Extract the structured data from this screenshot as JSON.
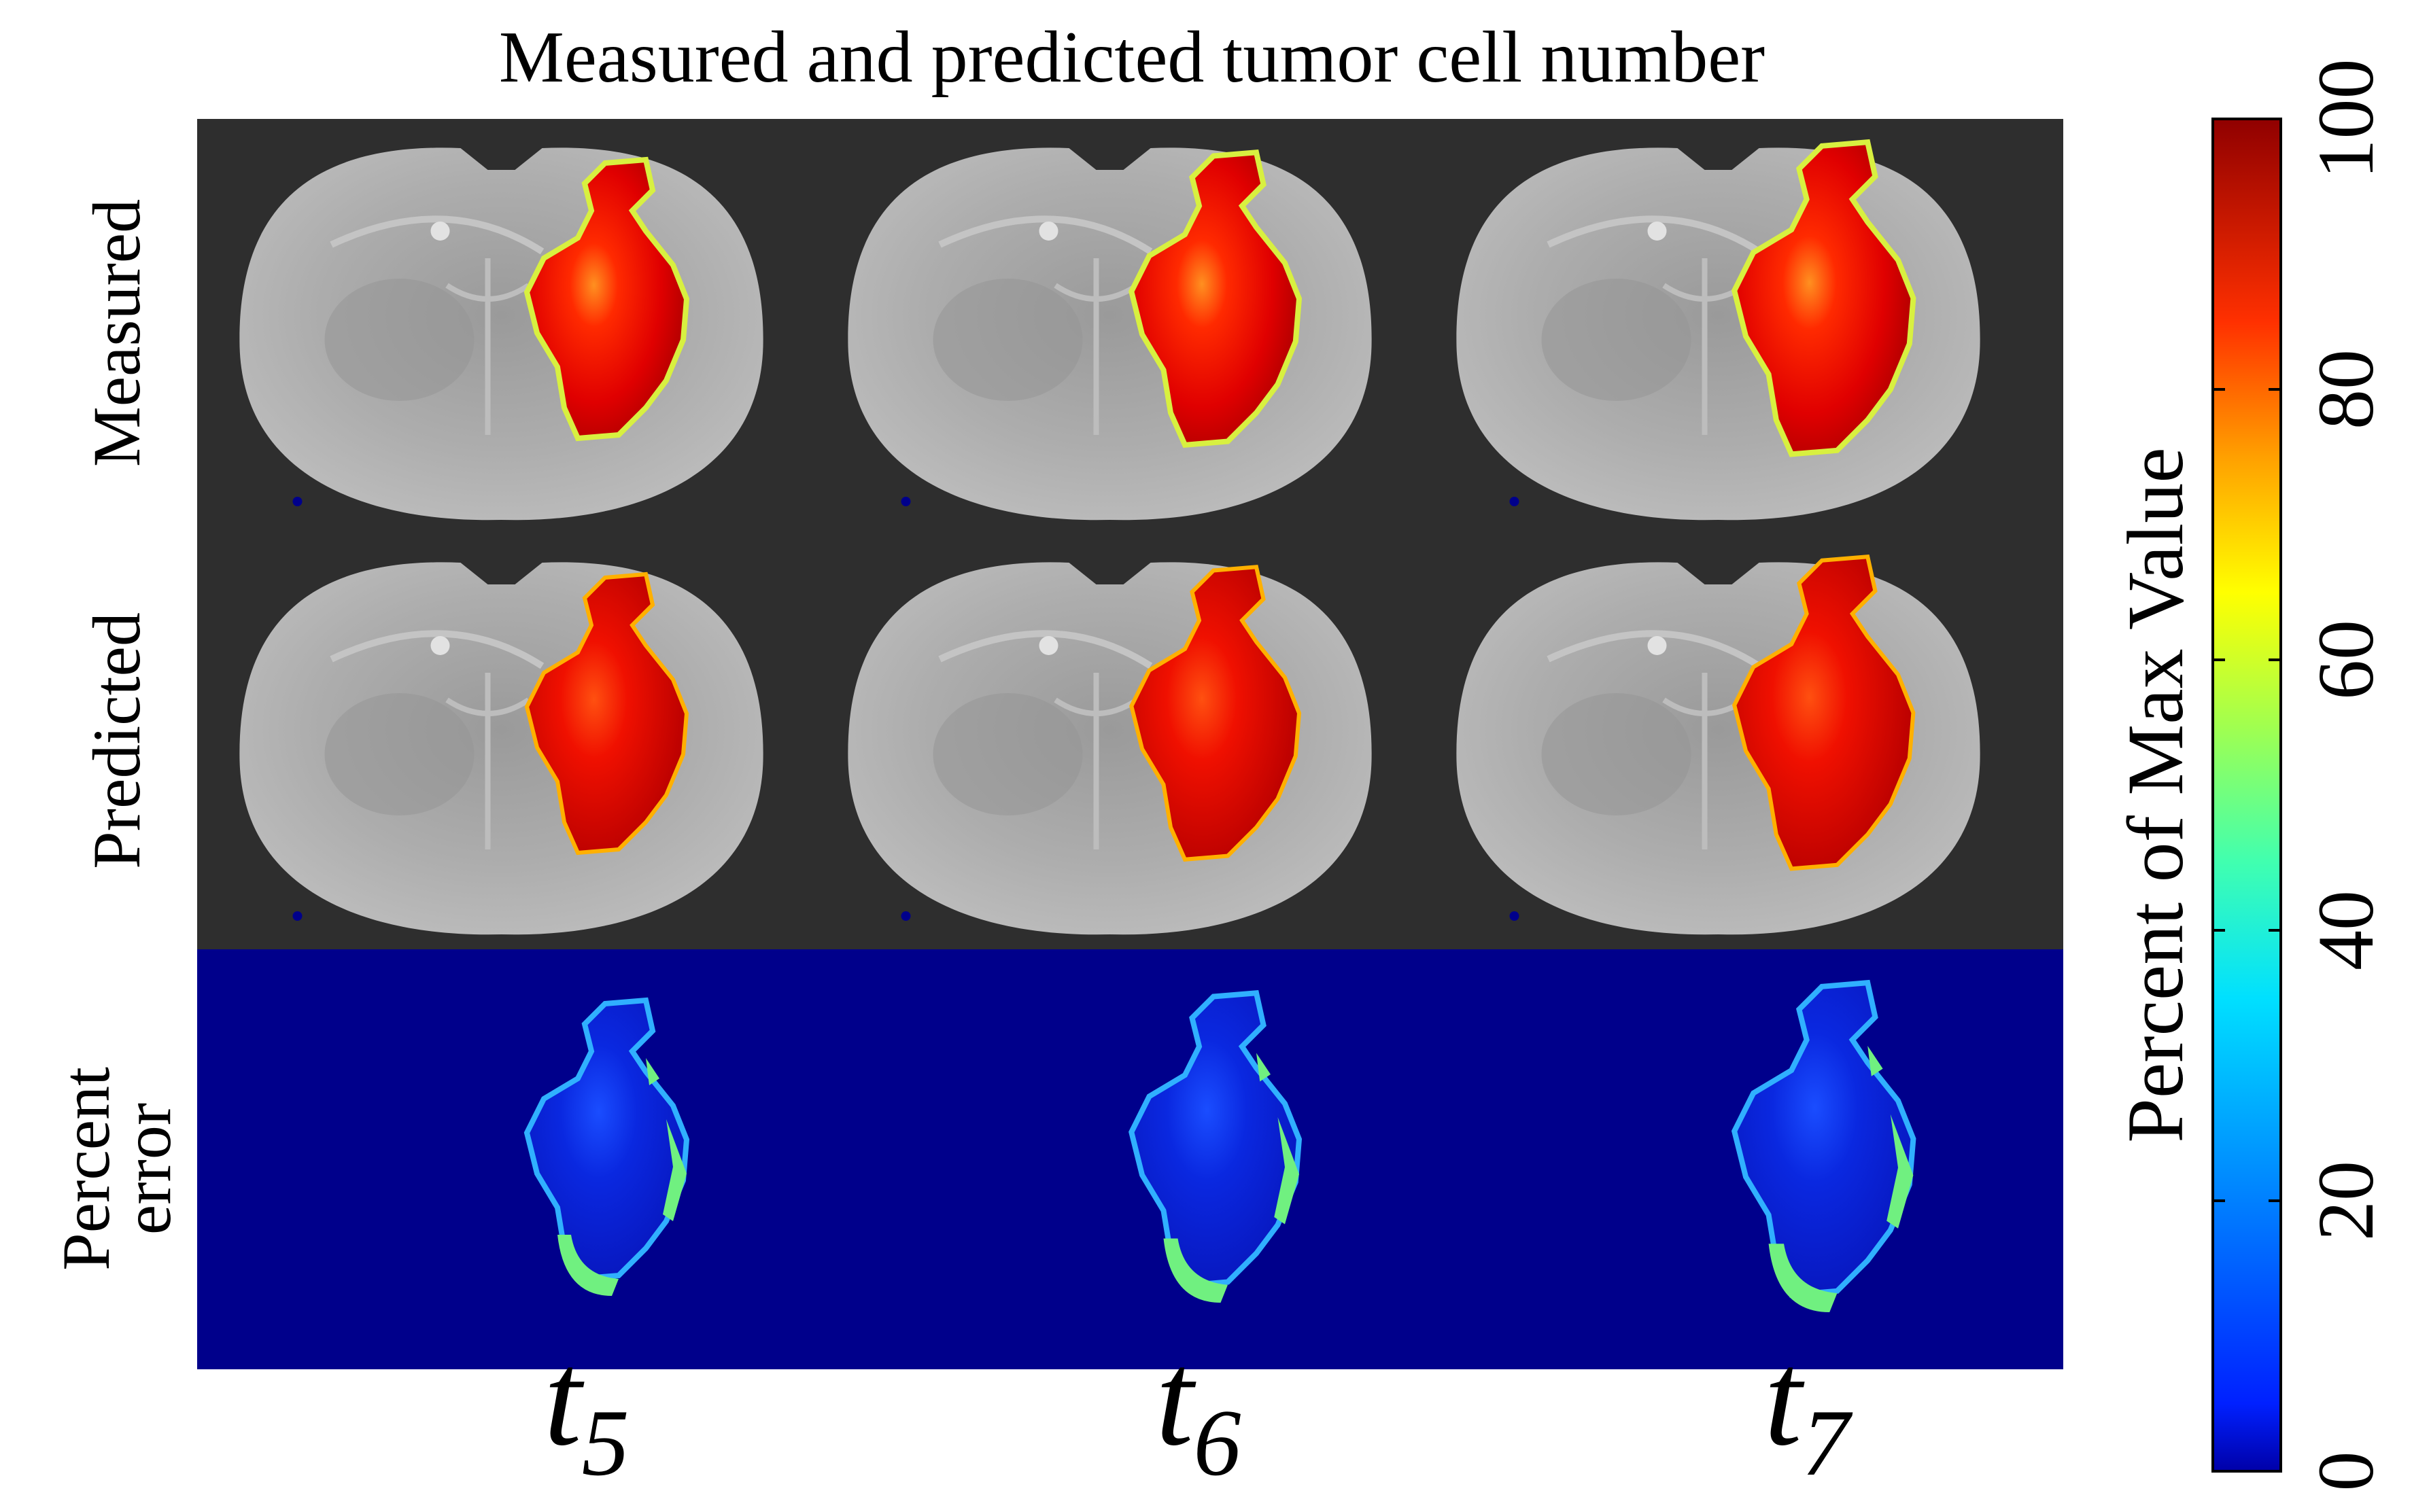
{
  "chart_data": {
    "type": "heatmap",
    "title": "Measured and predicted tumor cell number",
    "row_labels": [
      "Measured",
      "Predicted",
      [
        "Percent",
        "error"
      ]
    ],
    "time_labels": [
      {
        "base": "t",
        "sub": "5"
      },
      {
        "base": "t",
        "sub": "6"
      },
      {
        "base": "t",
        "sub": "7"
      }
    ],
    "colorbar": {
      "label": "Percent of Max Value",
      "range": [
        0,
        100
      ],
      "ticks": [
        0,
        20,
        40,
        60,
        80,
        100
      ],
      "colormap": "jet"
    },
    "panels": [
      {
        "row": "Measured",
        "time": "t5",
        "peak_percent": 100
      },
      {
        "row": "Measured",
        "time": "t6",
        "peak_percent": 100
      },
      {
        "row": "Measured",
        "time": "t7",
        "peak_percent": 100
      },
      {
        "row": "Predicted",
        "time": "t5",
        "peak_percent": 95
      },
      {
        "row": "Predicted",
        "time": "t6",
        "peak_percent": 95
      },
      {
        "row": "Predicted",
        "time": "t7",
        "peak_percent": 95
      },
      {
        "row": "Percent error",
        "time": "t5",
        "peak_percent": 50
      },
      {
        "row": "Percent error",
        "time": "t6",
        "peak_percent": 50
      },
      {
        "row": "Percent error",
        "time": "t7",
        "peak_percent": 50
      }
    ]
  },
  "colors": {
    "background": "#ffffff",
    "panel_dark": "#2e2e2e",
    "brain_gray": "#a9a9a9",
    "error_background": "#00008b",
    "text": "#000000"
  }
}
